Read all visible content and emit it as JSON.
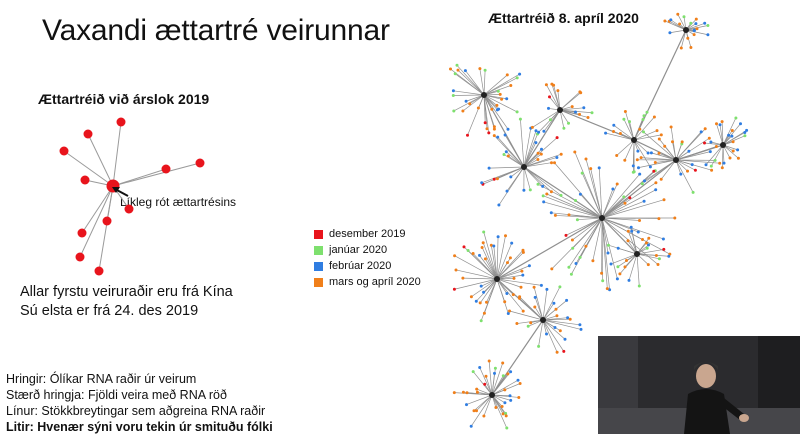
{
  "slide": {
    "title": "Vaxandi ættartré veirunnar",
    "small_tree_title": "Ættartréið við árslok 2019",
    "root_label": "Líkleg rót ættartrésins",
    "big_tree_title": "Ættartréið 8. apríl 2020",
    "notes": [
      "Allar fyrstu veiruraðir eru frá Kína",
      "Sú elsta er frá 24. des 2019"
    ],
    "captions": [
      "Hringir: Ólíkar RNA raðir úr veirum",
      "Stærð hringja: Fjöldi veira með RNA röð",
      "Línur: Stökkbreytingar sem aðgreina RNA raðir",
      "Litir: Hvenær sýni voru tekin úr smituðu fólki"
    ]
  },
  "legend": [
    {
      "label": "desember 2019",
      "color": "#e8141c"
    },
    {
      "label": "janúar 2020",
      "color": "#7ee06e"
    },
    {
      "label": "febrúar 2020",
      "color": "#2f7de1"
    },
    {
      "label": "mars og apríl 2020",
      "color": "#f07f1a"
    }
  ],
  "colors": {
    "edge": "#9a9a9a",
    "red_node": "#e8141c",
    "hub": "#222222"
  }
}
